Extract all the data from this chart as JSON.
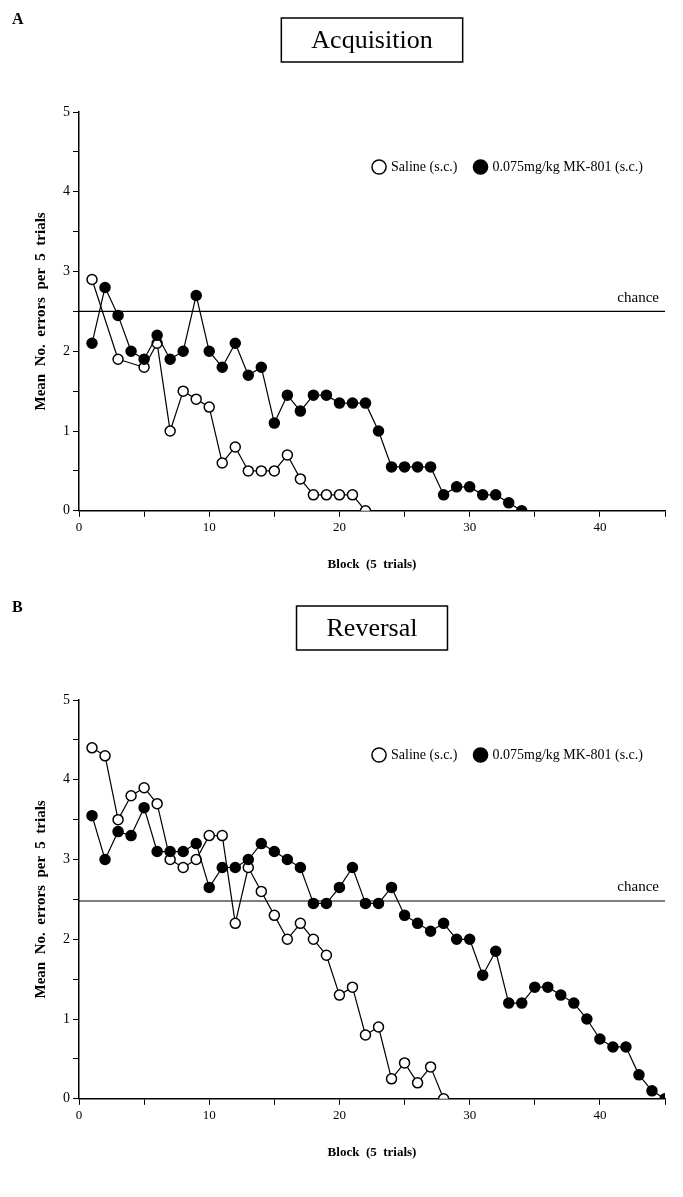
{
  "chart_data": [
    {
      "type": "line",
      "title": "Acquisition",
      "xlabel": "Block  (5  trials)",
      "ylabel": "Mean  No.  errors  per  5  trials",
      "annotations": [
        "A"
      ],
      "legend": "top right",
      "marker": "circle",
      "line_style": "solid",
      "grid": false,
      "xlim": [
        0,
        45
      ],
      "xticks": [
        0,
        {
          "value": 5,
          "label": null
        },
        10,
        {
          "value": 15,
          "label": null
        },
        20,
        {
          "value": 25,
          "label": null
        },
        30,
        {
          "value": 35,
          "label": null
        },
        40,
        {
          "value": 45,
          "label": null
        }
      ],
      "ylim": [
        0,
        5
      ],
      "yticks": [
        0,
        {
          "value": 0.5,
          "label": null
        },
        1,
        {
          "value": 1.5,
          "label": null
        },
        2,
        {
          "value": 2.5,
          "label": null
        },
        3,
        {
          "value": 3.5,
          "label": null
        },
        4,
        {
          "value": 4.5,
          "label": null
        },
        5
      ],
      "ref_lines": [
        {
          "axis": "y",
          "value": 2.5,
          "label": "chance"
        }
      ],
      "series": [
        {
          "name": "Saline (s.c.)",
          "color": "#000000",
          "x": [
            1,
            2,
            3,
            4,
            5,
            6,
            7,
            8,
            9,
            10,
            11,
            12,
            13,
            14,
            15,
            16,
            17,
            18,
            19,
            20,
            21,
            22
          ],
          "values": [
            2.9,
            null,
            1.9,
            null,
            1.8,
            2.1,
            1.0,
            1.5,
            1.4,
            1.3,
            0.6,
            0.8,
            0.5,
            0.5,
            0.5,
            0.7,
            0.4,
            0.2,
            0.2,
            0.2,
            0.2,
            0
          ]
        },
        {
          "name": "0.075mg/kg MK-801 (s.c.)",
          "color": "#000000",
          "x": [
            1,
            2,
            3,
            4,
            5,
            6,
            7,
            8,
            9,
            10,
            11,
            12,
            13,
            14,
            15,
            16,
            17,
            18,
            19,
            20,
            21,
            22,
            23,
            24,
            25,
            26,
            27,
            28,
            29,
            30,
            31,
            32,
            33,
            34
          ],
          "values": [
            2.1,
            2.8,
            2.45,
            2.0,
            1.9,
            2.2,
            1.9,
            2.0,
            2.7,
            2.0,
            1.8,
            2.1,
            1.7,
            1.8,
            1.1,
            1.45,
            1.25,
            1.45,
            1.45,
            1.35,
            1.35,
            1.35,
            1.0,
            0.55,
            0.55,
            0.55,
            0.55,
            0.2,
            0.3,
            0.3,
            0.2,
            0.2,
            0.1,
            0
          ]
        }
      ]
    },
    {
      "type": "line",
      "title": "Reversal",
      "xlabel": "Block  (5  trials)",
      "ylabel": "Mean  No.  errors  per  5  trials",
      "annotations": [
        "B"
      ],
      "legend": "top right",
      "marker": "circle",
      "line_style": "solid",
      "grid": false,
      "xlim": [
        0,
        45
      ],
      "xticks": [
        0,
        {
          "value": 5,
          "label": null
        },
        10,
        {
          "value": 15,
          "label": null
        },
        20,
        {
          "value": 25,
          "label": null
        },
        30,
        {
          "value": 35,
          "label": null
        },
        40,
        {
          "value": 45,
          "label": null
        }
      ],
      "ylim": [
        0,
        5
      ],
      "yticks": [
        0,
        {
          "value": 0.5,
          "label": null
        },
        1,
        {
          "value": 1.5,
          "label": null
        },
        2,
        {
          "value": 2.5,
          "label": null
        },
        3,
        {
          "value": 3.5,
          "label": null
        },
        4,
        {
          "value": 4.5,
          "label": null
        },
        5
      ],
      "ref_lines": [
        {
          "axis": "y",
          "value": 2.48,
          "label": "chance"
        }
      ],
      "series": [
        {
          "name": "Saline (s.c.)",
          "color": "#000000",
          "x": [
            1,
            2,
            3,
            4,
            5,
            6,
            7,
            8,
            9,
            10,
            11,
            12,
            13,
            14,
            15,
            16,
            17,
            18,
            19,
            20,
            21,
            22,
            23,
            24,
            25,
            26,
            27,
            28
          ],
          "values": [
            4.4,
            4.3,
            3.5,
            3.8,
            3.9,
            3.7,
            3.0,
            2.9,
            3.0,
            3.3,
            3.3,
            2.2,
            2.9,
            2.6,
            2.3,
            2.0,
            2.2,
            2.0,
            1.8,
            1.3,
            1.4,
            0.8,
            0.9,
            0.25,
            0.45,
            0.2,
            0.4,
            0
          ]
        },
        {
          "name": "0.075mg/kg MK-801 (s.c.)",
          "color": "#000000",
          "x": [
            1,
            2,
            3,
            4,
            5,
            6,
            7,
            8,
            9,
            10,
            11,
            12,
            13,
            14,
            15,
            16,
            17,
            18,
            19,
            20,
            21,
            22,
            23,
            24,
            25,
            26,
            27,
            28,
            29,
            30,
            31,
            32,
            33,
            34,
            35,
            36,
            37,
            38,
            39,
            40,
            41,
            42,
            43,
            44,
            45
          ],
          "values": [
            3.55,
            3.0,
            3.35,
            3.3,
            3.65,
            3.1,
            3.1,
            3.1,
            3.2,
            2.65,
            2.9,
            2.9,
            3.0,
            3.2,
            3.1,
            3.0,
            2.9,
            2.45,
            2.45,
            2.65,
            2.9,
            2.45,
            2.45,
            2.65,
            2.3,
            2.2,
            2.1,
            2.2,
            2.0,
            2.0,
            1.55,
            1.85,
            1.2,
            1.2,
            1.4,
            1.4,
            1.3,
            1.2,
            1.0,
            0.75,
            0.65,
            0.65,
            0.3,
            0.1,
            0
          ]
        }
      ]
    }
  ]
}
